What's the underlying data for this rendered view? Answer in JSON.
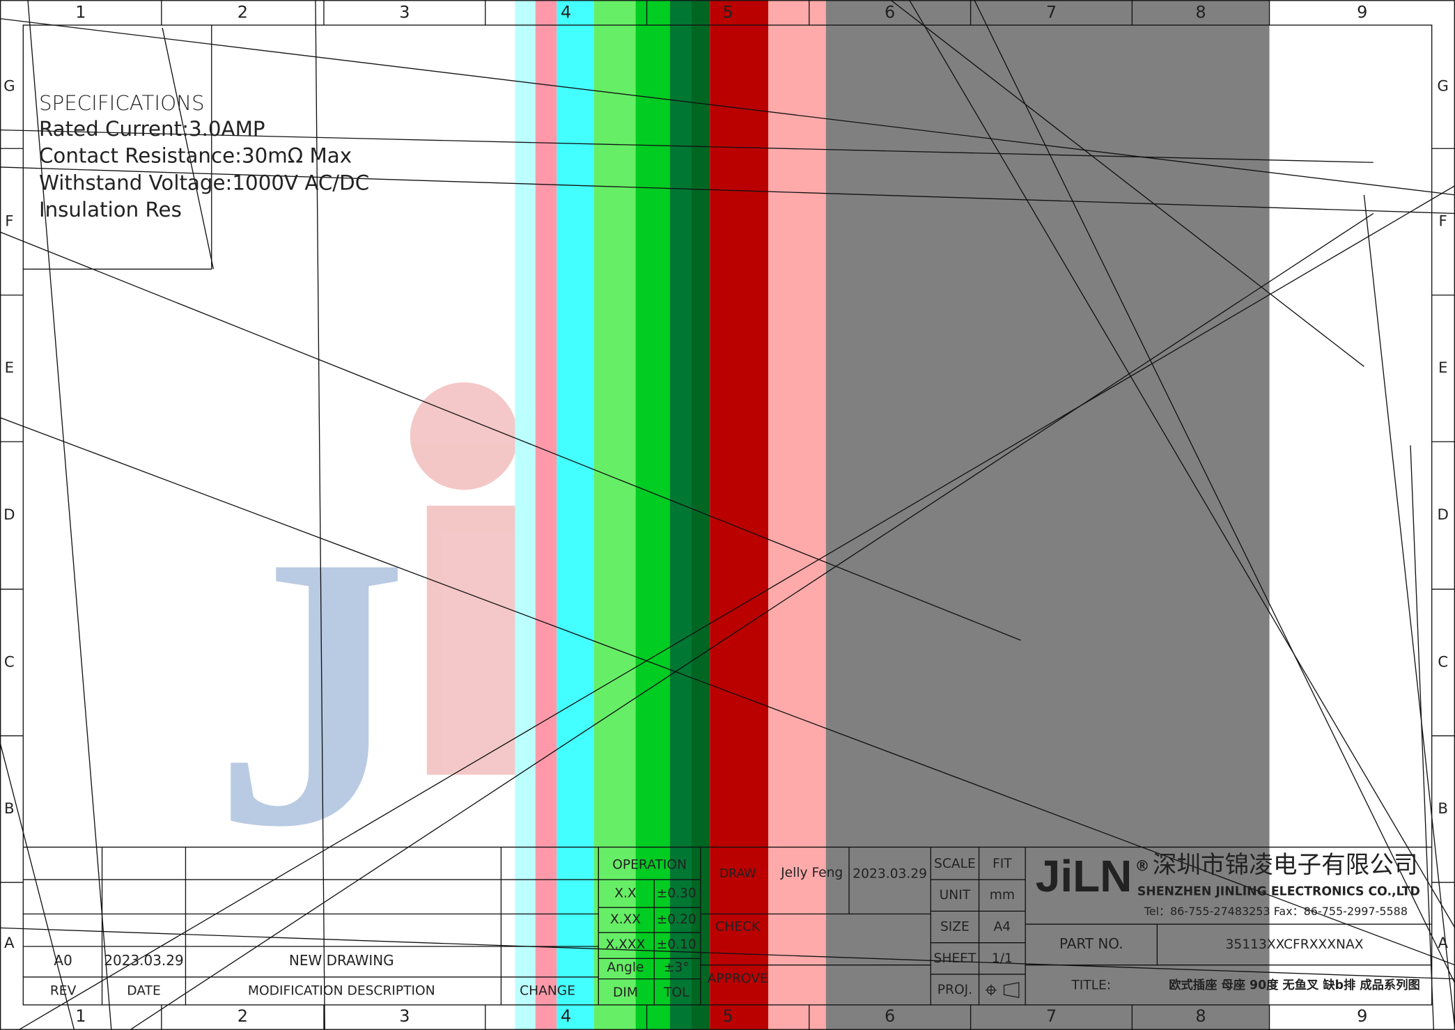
{
  "grid": {
    "columns": [
      "1",
      "2",
      "3",
      "4",
      "5",
      "6",
      "7",
      "8",
      "9"
    ],
    "rows": [
      "G",
      "F",
      "E",
      "D",
      "C",
      "B",
      "A"
    ]
  },
  "specifications": {
    "title": "SPECIFICATIONS",
    "items": [
      "Rated Current:3.0AMP",
      "Contact Resistance:30mΩ Max",
      "Withstand Voltage:1000V AC/DC",
      "Insulation Res"
    ]
  },
  "revision": {
    "headers": [
      "REV",
      "DATE",
      "MODIFICATION DESCRIPTION",
      "CHANGE"
    ],
    "rows": [
      [
        "A0",
        "2023.03.29",
        "NEW DRAWING"
      ]
    ]
  },
  "tolerance": {
    "title": "OPERATION",
    "rows": [
      [
        "X.X",
        "±0.30"
      ],
      [
        "X.XX",
        "±0.20"
      ],
      [
        "X.XXX",
        "±0.10"
      ],
      [
        "Angle",
        "±3°"
      ]
    ],
    "headers": [
      "DIM",
      "TOL"
    ]
  },
  "approval": {
    "draw": "DRAW",
    "drawer": "Jelly Feng",
    "date": "2023.03.29",
    "check": "CHECK",
    "approve": "APPROVE"
  },
  "sheet_info": [
    [
      "SCALE",
      "FIT"
    ],
    [
      "UNIT",
      "mm"
    ],
    [
      "SIZE",
      "A4"
    ],
    [
      "SHEET",
      "1/1"
    ],
    [
      "PROJ.",
      ""
    ]
  ],
  "company": {
    "logo": "JiLN",
    "registered": "®",
    "name_cn": "深圳市锦凌电子有限公司",
    "name_en": "SHENZHEN JINLING ELECTRONICS CO.,LTD",
    "contact": "Tel：86-755-27483253   Fax：86-755-2997-5588"
  },
  "part": {
    "label": "PART NO.",
    "number": "35113XXCFRXXXNAX",
    "title_label": "TITLE:",
    "title": "欧式插座 母座 90度 无鱼叉 缺b排 成品系列图"
  }
}
